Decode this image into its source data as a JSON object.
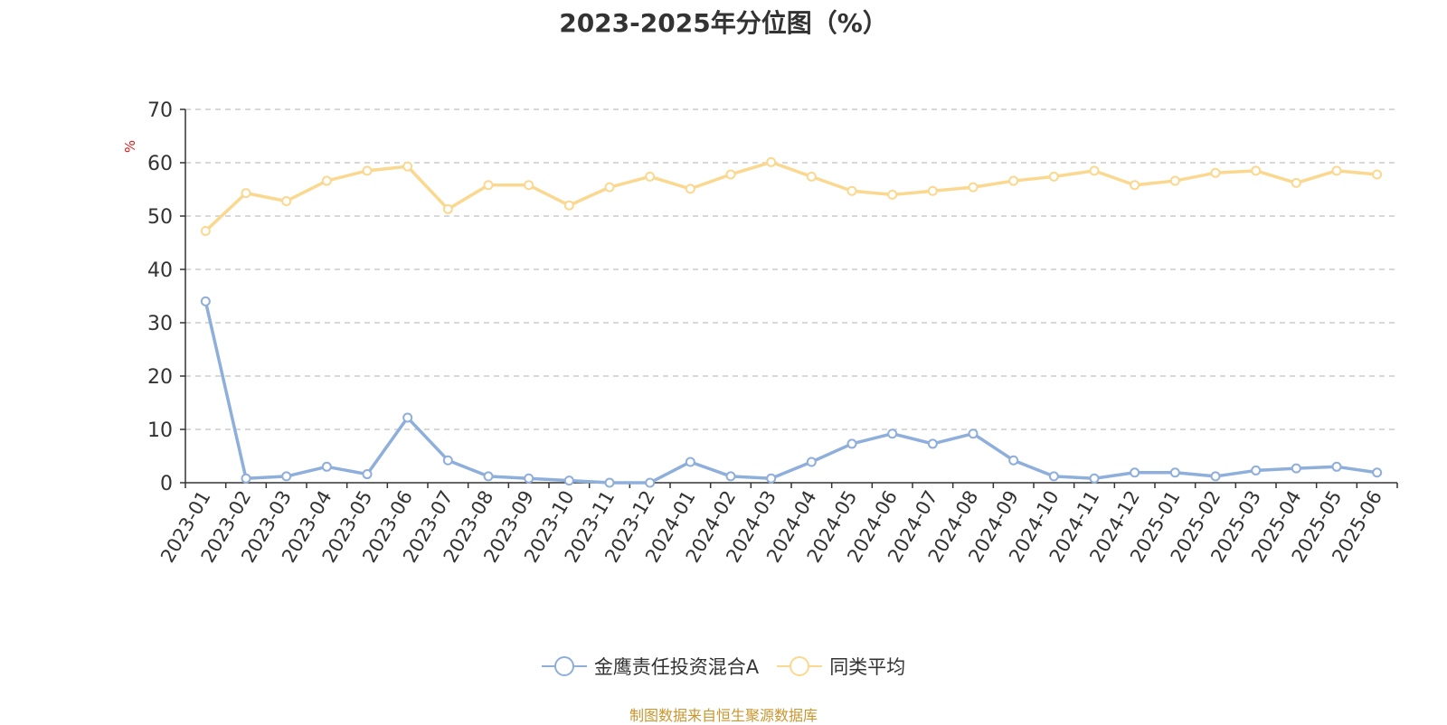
{
  "chart_data": {
    "type": "line",
    "title": "2023-2025年分位图（%）",
    "ylabel": "%",
    "ylim": [
      0,
      70
    ],
    "yticks": [
      0,
      10,
      20,
      30,
      40,
      50,
      60,
      70
    ],
    "grid": "horizontal dashed",
    "legend": "bottom-center",
    "categories": [
      "2023-01",
      "2023-02",
      "2023-03",
      "2023-04",
      "2023-05",
      "2023-06",
      "2023-07",
      "2023-08",
      "2023-09",
      "2023-10",
      "2023-11",
      "2023-12",
      "2024-01",
      "2024-02",
      "2024-03",
      "2024-04",
      "2024-05",
      "2024-06",
      "2024-07",
      "2024-08",
      "2024-09",
      "2024-10",
      "2024-11",
      "2024-12",
      "2025-01",
      "2025-02",
      "2025-03",
      "2025-04",
      "2025-05",
      "2025-06"
    ],
    "series": [
      {
        "name": "金鹰责任投资混合A",
        "color": "#8eaedb",
        "values": [
          34,
          0.8,
          1.2,
          3.0,
          1.6,
          12.2,
          4.2,
          1.2,
          0.8,
          0.4,
          0.0,
          0.0,
          3.9,
          1.2,
          0.8,
          3.9,
          7.3,
          9.2,
          7.3,
          9.2,
          4.2,
          1.2,
          0.8,
          1.9,
          1.9,
          1.2,
          2.3,
          2.7,
          3.0,
          1.9
        ]
      },
      {
        "name": "同类平均",
        "color": "#fbd88f",
        "values": [
          47.2,
          54.3,
          52.8,
          56.6,
          58.5,
          59.3,
          51.3,
          55.8,
          55.8,
          52.0,
          55.4,
          57.4,
          55.1,
          57.8,
          60.1,
          57.4,
          54.7,
          54.0,
          54.7,
          55.4,
          56.6,
          57.4,
          58.5,
          55.8,
          56.6,
          58.1,
          58.5,
          56.2,
          58.5,
          57.8
        ]
      }
    ]
  },
  "footer": {
    "source": "制图数据来自恒生聚源数据库"
  }
}
